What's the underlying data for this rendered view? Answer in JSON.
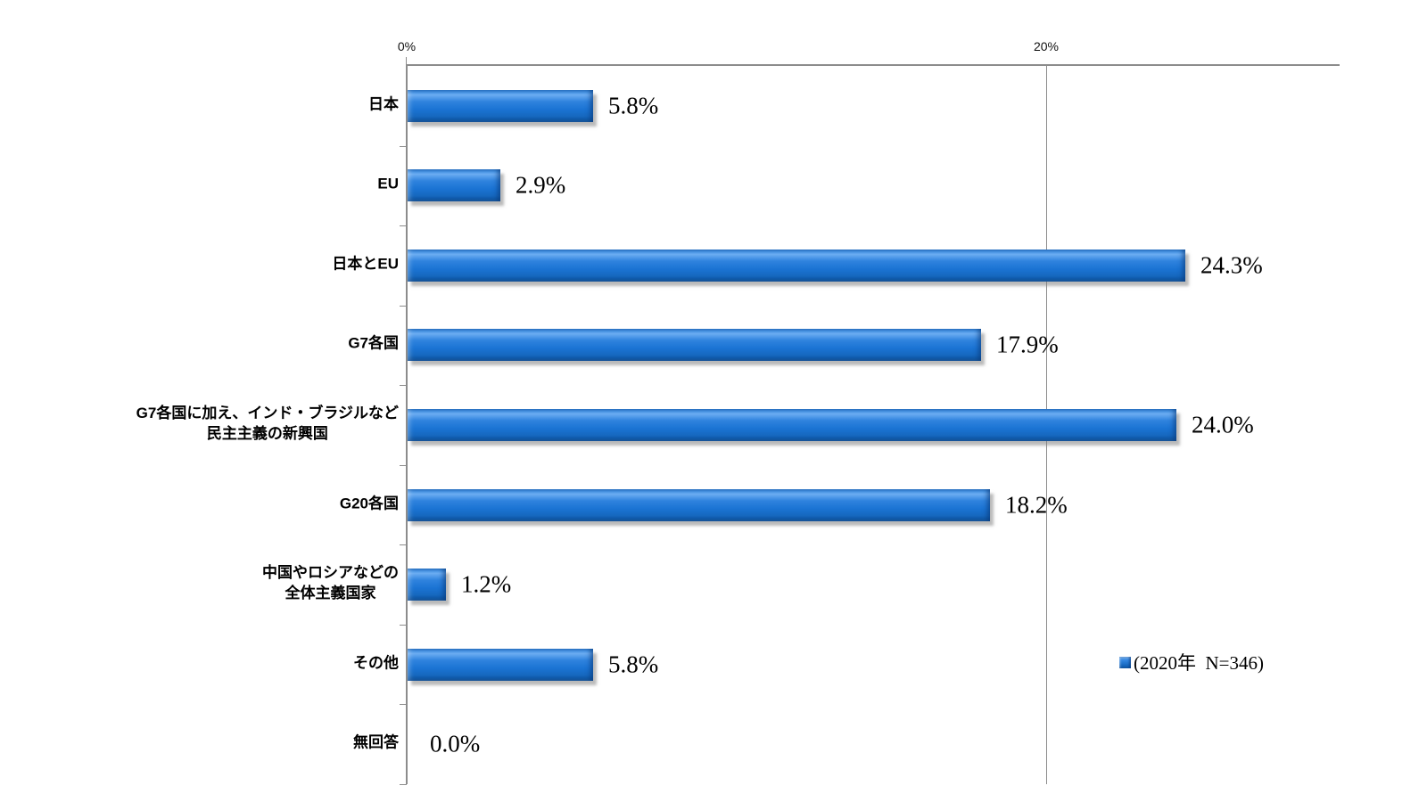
{
  "chart_data": {
    "type": "bar",
    "orientation": "horizontal",
    "title": "",
    "xlabel": "",
    "ylabel": "",
    "xlim": [
      0,
      29.1
    ],
    "grid": "single vertical gridline at 20%",
    "legend_position": "right, aligned with 8th row",
    "bar_color": "#1b74d4",
    "axis_color": "#8c8c8c",
    "xticks": [
      "0%",
      "20%"
    ],
    "xtick_values": [
      0,
      20
    ],
    "categories": [
      [
        "日本"
      ],
      [
        "EU"
      ],
      [
        "日本とEU"
      ],
      [
        "G7各国"
      ],
      [
        "G7各国に加え、インド・ブラジルなど",
        "民主主義の新興国"
      ],
      [
        "G20各国"
      ],
      [
        "中国やロシアなどの",
        "全体主義国家"
      ],
      [
        "その他"
      ],
      [
        "無回答"
      ]
    ],
    "values": [
      5.8,
      2.9,
      24.3,
      17.9,
      24.0,
      18.2,
      1.2,
      5.8,
      0.0
    ],
    "value_labels": [
      "5.8%",
      "2.9%",
      "24.3%",
      "17.9%",
      "24.0%",
      "18.2%",
      "1.2%",
      "5.8%",
      "0.0%"
    ],
    "legend": {
      "label": "(2020年  N=346)"
    }
  }
}
